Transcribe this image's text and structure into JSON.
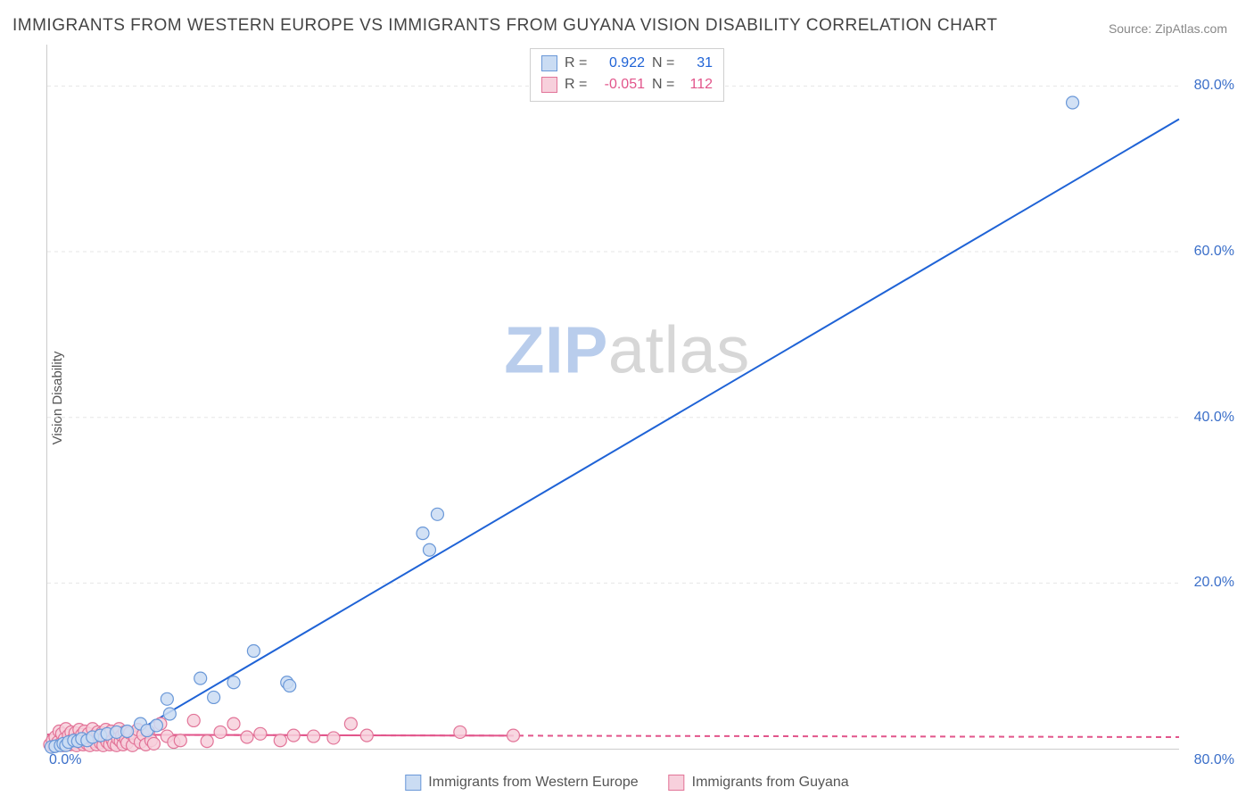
{
  "title": "IMMIGRANTS FROM WESTERN EUROPE VS IMMIGRANTS FROM GUYANA VISION DISABILITY CORRELATION CHART",
  "source": "Source: ZipAtlas.com",
  "ylabel": "Vision Disability",
  "watermark": {
    "part1": "ZIP",
    "part2": "atlas"
  },
  "chart": {
    "type": "scatter",
    "xlim": [
      0,
      85
    ],
    "ylim": [
      0,
      85
    ],
    "xticks": {
      "min_label": "0.0%",
      "max_label": "80.0%"
    },
    "yticks": [
      {
        "value": 20,
        "label": "20.0%"
      },
      {
        "value": 40,
        "label": "40.0%"
      },
      {
        "value": 60,
        "label": "60.0%"
      },
      {
        "value": 80,
        "label": "80.0%"
      }
    ],
    "grid_color": "#e6e6e6",
    "background_color": "#ffffff",
    "axis_color": "#cccccc",
    "tick_label_color": "#3b6fc9",
    "tick_fontsize": 16,
    "title_fontsize": 19,
    "title_color": "#444444",
    "marker_radius": 7,
    "marker_stroke_width": 1.2,
    "trend_line_width": 2,
    "series": [
      {
        "key": "western_europe",
        "label": "Immigrants from Western Europe",
        "fill": "#cadcf3",
        "stroke": "#6a98d8",
        "line_color": "#1f63d6",
        "line_dash": "none",
        "R": "0.922",
        "N": "31",
        "trend": {
          "x1": 4.5,
          "y1": 0,
          "x2": 85,
          "y2": 76
        },
        "points": [
          [
            0.3,
            0.2
          ],
          [
            0.6,
            0.3
          ],
          [
            1.0,
            0.4
          ],
          [
            1.2,
            0.6
          ],
          [
            1.4,
            0.4
          ],
          [
            1.6,
            0.8
          ],
          [
            2.0,
            1.0
          ],
          [
            2.3,
            0.9
          ],
          [
            2.6,
            1.2
          ],
          [
            3.0,
            1.0
          ],
          [
            3.4,
            1.4
          ],
          [
            4.0,
            1.6
          ],
          [
            4.5,
            1.8
          ],
          [
            5.2,
            2.0
          ],
          [
            6.0,
            2.1
          ],
          [
            7.0,
            3.0
          ],
          [
            7.5,
            2.2
          ],
          [
            8.2,
            2.8
          ],
          [
            9.0,
            6.0
          ],
          [
            9.2,
            4.2
          ],
          [
            11.5,
            8.5
          ],
          [
            12.5,
            6.2
          ],
          [
            14.0,
            8.0
          ],
          [
            15.5,
            11.8
          ],
          [
            18.0,
            8.0
          ],
          [
            18.2,
            7.6
          ],
          [
            28.2,
            26.0
          ],
          [
            28.7,
            24.0
          ],
          [
            29.3,
            28.3
          ],
          [
            77.0,
            78.0
          ]
        ]
      },
      {
        "key": "guyana",
        "label": "Immigrants from Guyana",
        "fill": "#f7d0dc",
        "stroke": "#e27498",
        "line_color": "#e2558b",
        "line_dash": "6,5",
        "R": "-0.051",
        "N": "112",
        "trend": {
          "x1": 0,
          "y1": 1.7,
          "x2": 85,
          "y2": 1.4
        },
        "points": [
          [
            0.2,
            0.5
          ],
          [
            0.4,
            1.0
          ],
          [
            0.5,
            0.3
          ],
          [
            0.6,
            1.4
          ],
          [
            0.8,
            0.8
          ],
          [
            0.9,
            2.1
          ],
          [
            1.0,
            0.6
          ],
          [
            1.1,
            1.8
          ],
          [
            1.2,
            0.4
          ],
          [
            1.3,
            1.2
          ],
          [
            1.4,
            2.4
          ],
          [
            1.5,
            0.9
          ],
          [
            1.6,
            1.6
          ],
          [
            1.7,
            0.5
          ],
          [
            1.8,
            2.0
          ],
          [
            1.9,
            1.1
          ],
          [
            2.0,
            0.7
          ],
          [
            2.1,
            1.9
          ],
          [
            2.2,
            0.4
          ],
          [
            2.3,
            1.3
          ],
          [
            2.4,
            2.3
          ],
          [
            2.5,
            0.8
          ],
          [
            2.6,
            1.7
          ],
          [
            2.7,
            0.5
          ],
          [
            2.8,
            2.1
          ],
          [
            2.9,
            1.0
          ],
          [
            3.0,
            0.6
          ],
          [
            3.1,
            1.8
          ],
          [
            3.2,
            0.4
          ],
          [
            3.3,
            1.2
          ],
          [
            3.4,
            2.4
          ],
          [
            3.5,
            0.9
          ],
          [
            3.6,
            1.6
          ],
          [
            3.7,
            0.5
          ],
          [
            3.8,
            2.0
          ],
          [
            3.9,
            1.1
          ],
          [
            4.0,
            0.7
          ],
          [
            4.1,
            1.9
          ],
          [
            4.2,
            0.4
          ],
          [
            4.3,
            1.3
          ],
          [
            4.4,
            2.3
          ],
          [
            4.5,
            0.8
          ],
          [
            4.6,
            1.7
          ],
          [
            4.7,
            0.5
          ],
          [
            4.8,
            2.1
          ],
          [
            4.9,
            1.0
          ],
          [
            5.0,
            0.6
          ],
          [
            5.1,
            1.8
          ],
          [
            5.2,
            0.4
          ],
          [
            5.3,
            1.2
          ],
          [
            5.4,
            2.4
          ],
          [
            5.5,
            0.9
          ],
          [
            5.6,
            1.6
          ],
          [
            5.7,
            0.5
          ],
          [
            5.8,
            2.0
          ],
          [
            5.9,
            1.1
          ],
          [
            6.0,
            0.7
          ],
          [
            6.2,
            1.9
          ],
          [
            6.4,
            0.4
          ],
          [
            6.6,
            1.3
          ],
          [
            6.8,
            2.3
          ],
          [
            7.0,
            0.8
          ],
          [
            7.2,
            1.7
          ],
          [
            7.4,
            0.5
          ],
          [
            7.6,
            2.1
          ],
          [
            7.8,
            1.0
          ],
          [
            8.0,
            0.6
          ],
          [
            8.5,
            3.0
          ],
          [
            9.0,
            1.5
          ],
          [
            9.5,
            0.8
          ],
          [
            10.0,
            1.0
          ],
          [
            11.0,
            3.4
          ],
          [
            12.0,
            0.9
          ],
          [
            13.0,
            2.0
          ],
          [
            14.0,
            3.0
          ],
          [
            15.0,
            1.4
          ],
          [
            16.0,
            1.8
          ],
          [
            17.5,
            1.0
          ],
          [
            18.5,
            1.6
          ],
          [
            20.0,
            1.5
          ],
          [
            21.5,
            1.3
          ],
          [
            22.8,
            3.0
          ],
          [
            24.0,
            1.6
          ],
          [
            31.0,
            2.0
          ],
          [
            35.0,
            1.6
          ]
        ]
      }
    ]
  },
  "stats_box": {
    "R_label": "R =",
    "N_label": "N ="
  },
  "legend_labels": [
    "Immigrants from Western Europe",
    "Immigrants from Guyana"
  ]
}
